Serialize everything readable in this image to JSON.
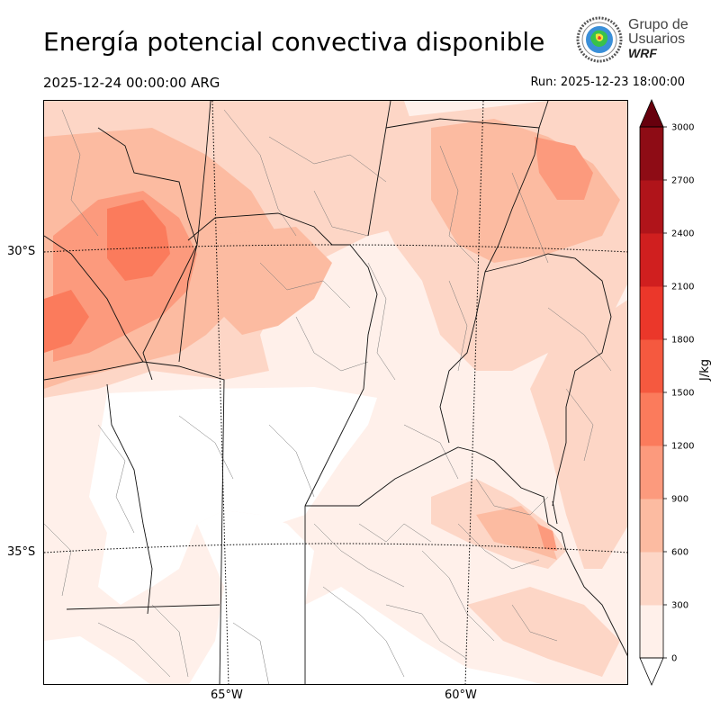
{
  "header": {
    "title": "Energía potencial convectiva disponible",
    "valid_time": "2025-12-24 00:00:00 ARG",
    "run_time": "Run: 2025-12-23 18:00:00"
  },
  "logo": {
    "line1": "Grupo de",
    "line2": "Usuarios",
    "line3": "WRF"
  },
  "map": {
    "lat_labels": [
      "30°S",
      "35°S"
    ],
    "lon_labels": [
      "65°W",
      "60°W"
    ]
  },
  "colorbar": {
    "unit": "J/kg",
    "ticks": [
      "0",
      "300",
      "600",
      "900",
      "1200",
      "1500",
      "1800",
      "2100",
      "2400",
      "2700",
      "3000"
    ],
    "colors": [
      "#fff0ea",
      "#fdd6c6",
      "#fcbba1",
      "#fc9a7d",
      "#fb7b5c",
      "#f5593f",
      "#eb372a",
      "#d01f1f",
      "#b0141a",
      "#8e0c15"
    ],
    "over_color": "#67000d",
    "under_color": "#ffffff"
  }
}
